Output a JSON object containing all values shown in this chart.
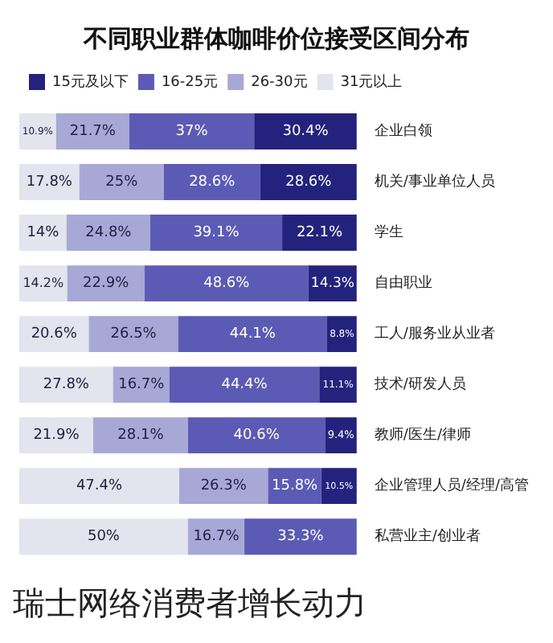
{
  "chart_data": {
    "type": "bar",
    "orientation": "horizontal",
    "stacked": true,
    "title": "不同职业群体咖啡价位接受区间分布",
    "categories": [
      "企业白领",
      "机关/事业单位人员",
      "学生",
      "自由职业",
      "工人/服务业从业者",
      "技术/研发人员",
      "教师/医生/律师",
      "企业管理人员/经理/高管",
      "私营业主/创业者"
    ],
    "series": [
      {
        "name": "15元及以下",
        "color": "#23237e",
        "values": [
          30.4,
          28.6,
          22.1,
          14.3,
          8.8,
          11.1,
          9.4,
          10.5,
          null
        ],
        "value_labels": [
          "30.4%",
          "28.6%",
          "22.1%",
          "14.3%",
          "8.8%",
          "11.1%",
          "9.4%",
          "10.5%",
          null
        ]
      },
      {
        "name": "16-25元",
        "color": "#5b5bb5",
        "values": [
          37,
          28.6,
          39.1,
          48.6,
          44.1,
          44.4,
          40.6,
          15.8,
          33.3
        ],
        "value_labels": [
          "37%",
          "28.6%",
          "39.1%",
          "48.6%",
          "44.1%",
          "44.4%",
          "40.6%",
          "15.8%",
          "33.3%"
        ]
      },
      {
        "name": "26-30元",
        "color": "#a8a8d6",
        "values": [
          21.7,
          25,
          24.8,
          22.9,
          26.5,
          16.7,
          28.1,
          26.3,
          16.7
        ],
        "value_labels": [
          "21.7%",
          "25%",
          "24.8%",
          "22.9%",
          "26.5%",
          "16.7%",
          "28.1%",
          "26.3%",
          "16.7%"
        ]
      },
      {
        "name": "31元以上",
        "color": "#e4e4ee",
        "values": [
          10.9,
          17.8,
          14,
          14.2,
          20.6,
          27.8,
          21.9,
          47.4,
          50
        ],
        "value_labels": [
          "10.9%",
          "17.8%",
          "14%",
          "14.2%",
          "20.6%",
          "27.8%",
          "21.9%",
          "47.4%",
          "50%"
        ]
      }
    ],
    "xlim": [
      100,
      0
    ],
    "legend": "top",
    "tick_labels": "y",
    "annotations": [
      "瑞士网络消费者增长动力"
    ]
  }
}
